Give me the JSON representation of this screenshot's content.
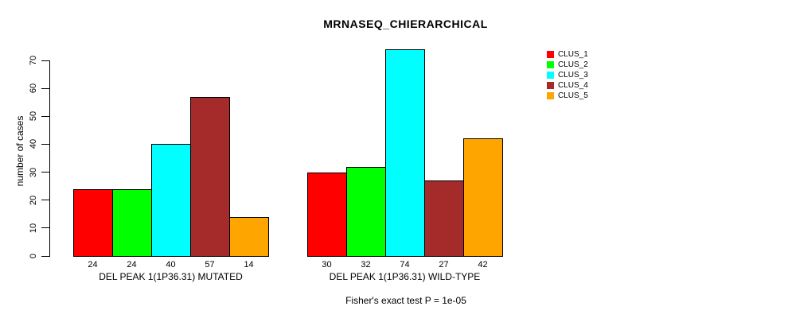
{
  "title": "MRNASEQ_CHIERARCHICAL",
  "footer": "Fisher's exact test P = 1e-05",
  "chart_data": {
    "type": "bar",
    "title": "MRNASEQ_CHIERARCHICAL",
    "xlabel": "",
    "ylabel": "number of cases",
    "ylim": [
      0,
      70
    ],
    "yticks": [
      0,
      10,
      20,
      30,
      40,
      50,
      60,
      70
    ],
    "grid": false,
    "legend_position": "right",
    "categories": [
      "DEL PEAK  1(1P36.31) MUTATED",
      "DEL PEAK  1(1P36.31) WILD-TYPE"
    ],
    "series": [
      {
        "name": "CLUS_1",
        "color": "#FF0000",
        "values": [
          24,
          30
        ]
      },
      {
        "name": "CLUS_2",
        "color": "#00FF00",
        "values": [
          24,
          32
        ]
      },
      {
        "name": "CLUS_3",
        "color": "#00FFFF",
        "values": [
          40,
          74
        ]
      },
      {
        "name": "CLUS_4",
        "color": "#A52A2A",
        "values": [
          57,
          27
        ]
      },
      {
        "name": "CLUS_5",
        "color": "#FFA500",
        "values": [
          14,
          42
        ]
      }
    ],
    "bar_value_labels": [
      [
        "24",
        "24",
        "40",
        "57",
        "14"
      ],
      [
        "30",
        "32",
        "74",
        "27",
        "42"
      ]
    ],
    "annotation": "Fisher's exact test P = 1e-05"
  }
}
